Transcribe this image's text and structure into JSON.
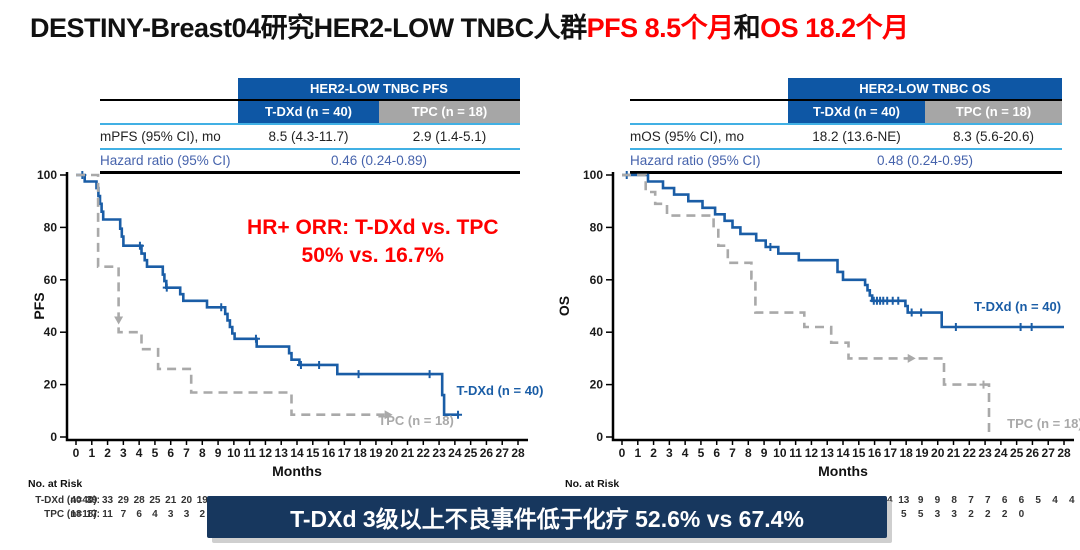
{
  "title": {
    "segments": [
      {
        "text": "DESTINY-Breast04研究HER2-LOW TNBC人群",
        "color": "#111111"
      },
      {
        "text": "PFS 8.5个月",
        "color": "#FF0000"
      },
      {
        "text": "和",
        "color": "#111111"
      },
      {
        "text": "OS 18.2个月",
        "color": "#FF0000"
      }
    ]
  },
  "colors": {
    "header_blue": "#0E57A5",
    "header_gray": "#A6A6A6",
    "rule_cyan": "#41B0E4",
    "hazard_blue": "#4663AC",
    "curve_blue": "#1A5DA6",
    "curve_gray": "#A9A9A9",
    "banner_navy": "#17375E",
    "annotation_red": "#FF0000"
  },
  "tables": {
    "pfs": {
      "header": "HER2-LOW TNBC PFS",
      "col1": "T-DXd (n = 40)",
      "col2": "TPC (n = 18)",
      "row1": {
        "label": "mPFS (95% CI), mo",
        "v1": "8.5 (4.3-11.7)",
        "v2": "2.9 (1.4-5.1)"
      },
      "row2": {
        "label": "Hazard ratio (95% CI)",
        "value": "0.46 (0.24-0.89)"
      }
    },
    "os": {
      "header": "HER2-LOW TNBC OS",
      "col1": "T-DXd (n = 40)",
      "col2": "TPC (n = 18)",
      "row1": {
        "label": "mOS (95% CI), mo",
        "v1": "18.2 (13.6-NE)",
        "v2": "8.3 (5.6-20.6)"
      },
      "row2": {
        "label": "Hazard ratio (95% CI)",
        "value": "0.48 (0.24-0.95)"
      }
    }
  },
  "chart_data": [
    {
      "type": "line",
      "kind": "kaplan-meier",
      "title": "HER2-LOW TNBC PFS",
      "xlabel": "Months",
      "ylabel": "PFS",
      "xlim": [
        0,
        28
      ],
      "ylim": [
        0,
        100
      ],
      "xticks": [
        0,
        1,
        2,
        3,
        4,
        5,
        6,
        7,
        8,
        9,
        10,
        11,
        12,
        13,
        14,
        15,
        16,
        17,
        18,
        19,
        20,
        21,
        22,
        23,
        24,
        25,
        26,
        27,
        28
      ],
      "yticks": [
        0,
        20,
        40,
        60,
        80,
        100
      ],
      "annotation": {
        "lines": [
          "HR+ ORR:  T-DXd vs. TPC",
          "50% vs. 16.7%"
        ],
        "x": 18.8,
        "y": 77.5,
        "color": "#FF0000"
      },
      "series": [
        {
          "key": "tdxd",
          "name": "T-DXd (n = 40)",
          "color": "#1A5DA6",
          "dash": false,
          "median": "8.5 months",
          "points": [
            [
              0,
              100
            ],
            [
              0.55,
              100
            ],
            [
              0.55,
              97.5
            ],
            [
              1.3,
              97.5
            ],
            [
              1.3,
              95
            ],
            [
              1.42,
              95
            ],
            [
              1.42,
              92
            ],
            [
              1.52,
              92
            ],
            [
              1.52,
              89
            ],
            [
              1.62,
              89
            ],
            [
              1.62,
              86
            ],
            [
              1.72,
              86
            ],
            [
              1.72,
              83
            ],
            [
              2.8,
              83
            ],
            [
              2.8,
              79.5
            ],
            [
              2.9,
              79.5
            ],
            [
              2.9,
              76.5
            ],
            [
              3.0,
              76.5
            ],
            [
              3.0,
              73
            ],
            [
              4.15,
              73
            ],
            [
              4.15,
              70
            ],
            [
              4.35,
              70
            ],
            [
              4.35,
              67.5
            ],
            [
              4.5,
              67.5
            ],
            [
              4.5,
              65
            ],
            [
              5.5,
              65
            ],
            [
              5.5,
              62
            ],
            [
              5.6,
              62
            ],
            [
              5.6,
              59.5
            ],
            [
              5.72,
              59.5
            ],
            [
              5.72,
              57
            ],
            [
              6.6,
              57
            ],
            [
              6.6,
              54.5
            ],
            [
              6.8,
              54.5
            ],
            [
              6.8,
              52
            ],
            [
              8.3,
              52
            ],
            [
              8.3,
              49.5
            ],
            [
              9.45,
              49.5
            ],
            [
              9.45,
              47
            ],
            [
              9.6,
              47
            ],
            [
              9.6,
              44.5
            ],
            [
              9.75,
              44.5
            ],
            [
              9.75,
              42
            ],
            [
              9.9,
              42
            ],
            [
              9.9,
              39.5
            ],
            [
              10.05,
              39.5
            ],
            [
              10.05,
              37.5
            ],
            [
              11.45,
              37.5
            ],
            [
              11.45,
              34.5
            ],
            [
              13.5,
              34.5
            ],
            [
              13.5,
              32
            ],
            [
              13.65,
              32
            ],
            [
              13.65,
              29.5
            ],
            [
              14.15,
              29.5
            ],
            [
              14.15,
              27.5
            ],
            [
              16.55,
              27.5
            ],
            [
              16.55,
              24
            ],
            [
              23.2,
              24
            ],
            [
              23.2,
              16
            ],
            [
              23.32,
              16
            ],
            [
              23.32,
              8.5
            ],
            [
              24.25,
              8.5
            ]
          ],
          "censors": [
            [
              0.4,
              100
            ],
            [
              4.05,
              73
            ],
            [
              5.75,
              57
            ],
            [
              9.2,
              49.5
            ],
            [
              11.4,
              37.5
            ],
            [
              14.25,
              27.5
            ],
            [
              15.4,
              27.5
            ],
            [
              17.9,
              24
            ],
            [
              22.4,
              24
            ],
            [
              24.2,
              8.5
            ]
          ],
          "legend": {
            "x": 24.1,
            "y": 16
          }
        },
        {
          "key": "tpc",
          "name": "TPC (n = 18)",
          "color": "#A9A9A9",
          "dash": true,
          "median": "2.9 months",
          "points": [
            [
              0,
              100
            ],
            [
              1.4,
              100
            ],
            [
              1.4,
              65
            ],
            [
              2.7,
              65
            ],
            [
              2.7,
              40
            ],
            [
              4.15,
              40
            ],
            [
              4.15,
              33.5
            ],
            [
              5.2,
              33.5
            ],
            [
              5.2,
              26
            ],
            [
              7.3,
              26
            ],
            [
              7.3,
              17
            ],
            [
              13.65,
              17
            ],
            [
              13.65,
              8.5
            ],
            [
              19.55,
              8.5
            ]
          ],
          "censors": [],
          "down_arrows": [
            [
              2.7,
              46
            ]
          ],
          "right_arrows": [
            [
              19.55,
              8.5
            ]
          ],
          "legend": {
            "x": 19.15,
            "y": 4.5
          }
        }
      ]
    },
    {
      "type": "line",
      "kind": "kaplan-meier",
      "title": "HER2-LOW TNBC OS",
      "xlabel": "Months",
      "ylabel": "OS",
      "xlim": [
        0,
        28
      ],
      "ylim": [
        0,
        100
      ],
      "xticks": [
        0,
        1,
        2,
        3,
        4,
        5,
        6,
        7,
        8,
        9,
        10,
        11,
        12,
        13,
        14,
        15,
        16,
        17,
        18,
        19,
        20,
        21,
        22,
        23,
        24,
        25,
        26,
        27,
        28
      ],
      "yticks": [
        0,
        20,
        40,
        60,
        80,
        100
      ],
      "series": [
        {
          "key": "tdxd",
          "name": "T-DXd (n = 40)",
          "color": "#1A5DA6",
          "dash": false,
          "median": "18.2 months",
          "points": [
            [
              0,
              100
            ],
            [
              1.65,
              100
            ],
            [
              1.65,
              97.5
            ],
            [
              2.6,
              97.5
            ],
            [
              2.6,
              95
            ],
            [
              3.3,
              95
            ],
            [
              3.3,
              92.5
            ],
            [
              4.2,
              92.5
            ],
            [
              4.2,
              90
            ],
            [
              5.1,
              90
            ],
            [
              5.1,
              87.5
            ],
            [
              5.9,
              87.5
            ],
            [
              5.9,
              85
            ],
            [
              6.5,
              85
            ],
            [
              6.5,
              82.5
            ],
            [
              7.0,
              82.5
            ],
            [
              7.0,
              80
            ],
            [
              7.5,
              80
            ],
            [
              7.5,
              77.5
            ],
            [
              8.5,
              77.5
            ],
            [
              8.5,
              75
            ],
            [
              9.1,
              75
            ],
            [
              9.1,
              72.5
            ],
            [
              9.9,
              72.5
            ],
            [
              9.9,
              70
            ],
            [
              11.2,
              70
            ],
            [
              11.2,
              67.5
            ],
            [
              13.65,
              67.5
            ],
            [
              13.65,
              63
            ],
            [
              14.0,
              63
            ],
            [
              14.0,
              60
            ],
            [
              15.4,
              60
            ],
            [
              15.4,
              58
            ],
            [
              15.55,
              58
            ],
            [
              15.55,
              56
            ],
            [
              15.7,
              56
            ],
            [
              15.7,
              54
            ],
            [
              15.85,
              54
            ],
            [
              15.85,
              52
            ],
            [
              17.95,
              52
            ],
            [
              17.95,
              50
            ],
            [
              18.1,
              50
            ],
            [
              18.1,
              47.5
            ],
            [
              20.25,
              47.5
            ],
            [
              20.25,
              42
            ],
            [
              28,
              42
            ]
          ],
          "censors": [
            [
              0.3,
              100
            ],
            [
              9.4,
              72.5
            ],
            [
              15.95,
              52
            ],
            [
              16.15,
              52
            ],
            [
              16.35,
              52
            ],
            [
              16.55,
              52
            ],
            [
              16.8,
              52
            ],
            [
              17.15,
              52
            ],
            [
              17.5,
              52
            ],
            [
              18.35,
              47.5
            ],
            [
              18.95,
              47.5
            ],
            [
              21.15,
              42
            ],
            [
              25.25,
              42
            ],
            [
              25.95,
              42
            ]
          ],
          "legend": {
            "x": 22.3,
            "y": 48
          }
        },
        {
          "key": "tpc",
          "name": "TPC (n = 18)",
          "color": "#A9A9A9",
          "dash": true,
          "median": "8.3 months",
          "points": [
            [
              0,
              100
            ],
            [
              1.5,
              100
            ],
            [
              1.5,
              93.5
            ],
            [
              2.1,
              93.5
            ],
            [
              2.1,
              89
            ],
            [
              2.85,
              89
            ],
            [
              2.85,
              84.5
            ],
            [
              5.8,
              84.5
            ],
            [
              5.8,
              79
            ],
            [
              6.1,
              79
            ],
            [
              6.1,
              73
            ],
            [
              6.7,
              73
            ],
            [
              6.7,
              66.5
            ],
            [
              8.2,
              66.5
            ],
            [
              8.2,
              60.5
            ],
            [
              8.45,
              60.5
            ],
            [
              8.45,
              47.5
            ],
            [
              11.55,
              47.5
            ],
            [
              11.55,
              42
            ],
            [
              13.25,
              42
            ],
            [
              13.25,
              36
            ],
            [
              14.35,
              36
            ],
            [
              14.35,
              30
            ],
            [
              20.4,
              30
            ],
            [
              20.4,
              20
            ],
            [
              23.25,
              20
            ],
            [
              23.25,
              0
            ]
          ],
          "censors": [
            [
              22.9,
              20
            ]
          ],
          "right_arrows": [
            [
              18.1,
              30
            ]
          ],
          "legend": {
            "x": 24.4,
            "y": 3.5
          }
        }
      ]
    }
  ],
  "risk_tables": {
    "left": {
      "title": "No. at Risk",
      "rows": [
        {
          "label": "T-DXd (n=40):",
          "values": [
            "40",
            "39",
            "33",
            "29",
            "28",
            "25",
            "21",
            "20",
            "19"
          ]
        },
        {
          "label": "TPC (n=18):",
          "values": [
            "18",
            "17",
            "11",
            "7",
            "6",
            "4",
            "3",
            "3",
            "2"
          ]
        }
      ]
    },
    "right": {
      "title": "No. at Risk",
      "rows": [
        {
          "label": "",
          "values": [
            "14",
            "13",
            "9",
            "9",
            "8",
            "7",
            "7",
            "6",
            "6",
            "5",
            "4",
            "4"
          ]
        },
        {
          "label": "",
          "values": [
            "5",
            "5",
            "3",
            "3",
            "2",
            "2",
            "2",
            "0"
          ]
        }
      ]
    }
  },
  "banner": {
    "text": "T-DXd 3级以上不良事件低于化疗 52.6% vs 67.4%"
  }
}
